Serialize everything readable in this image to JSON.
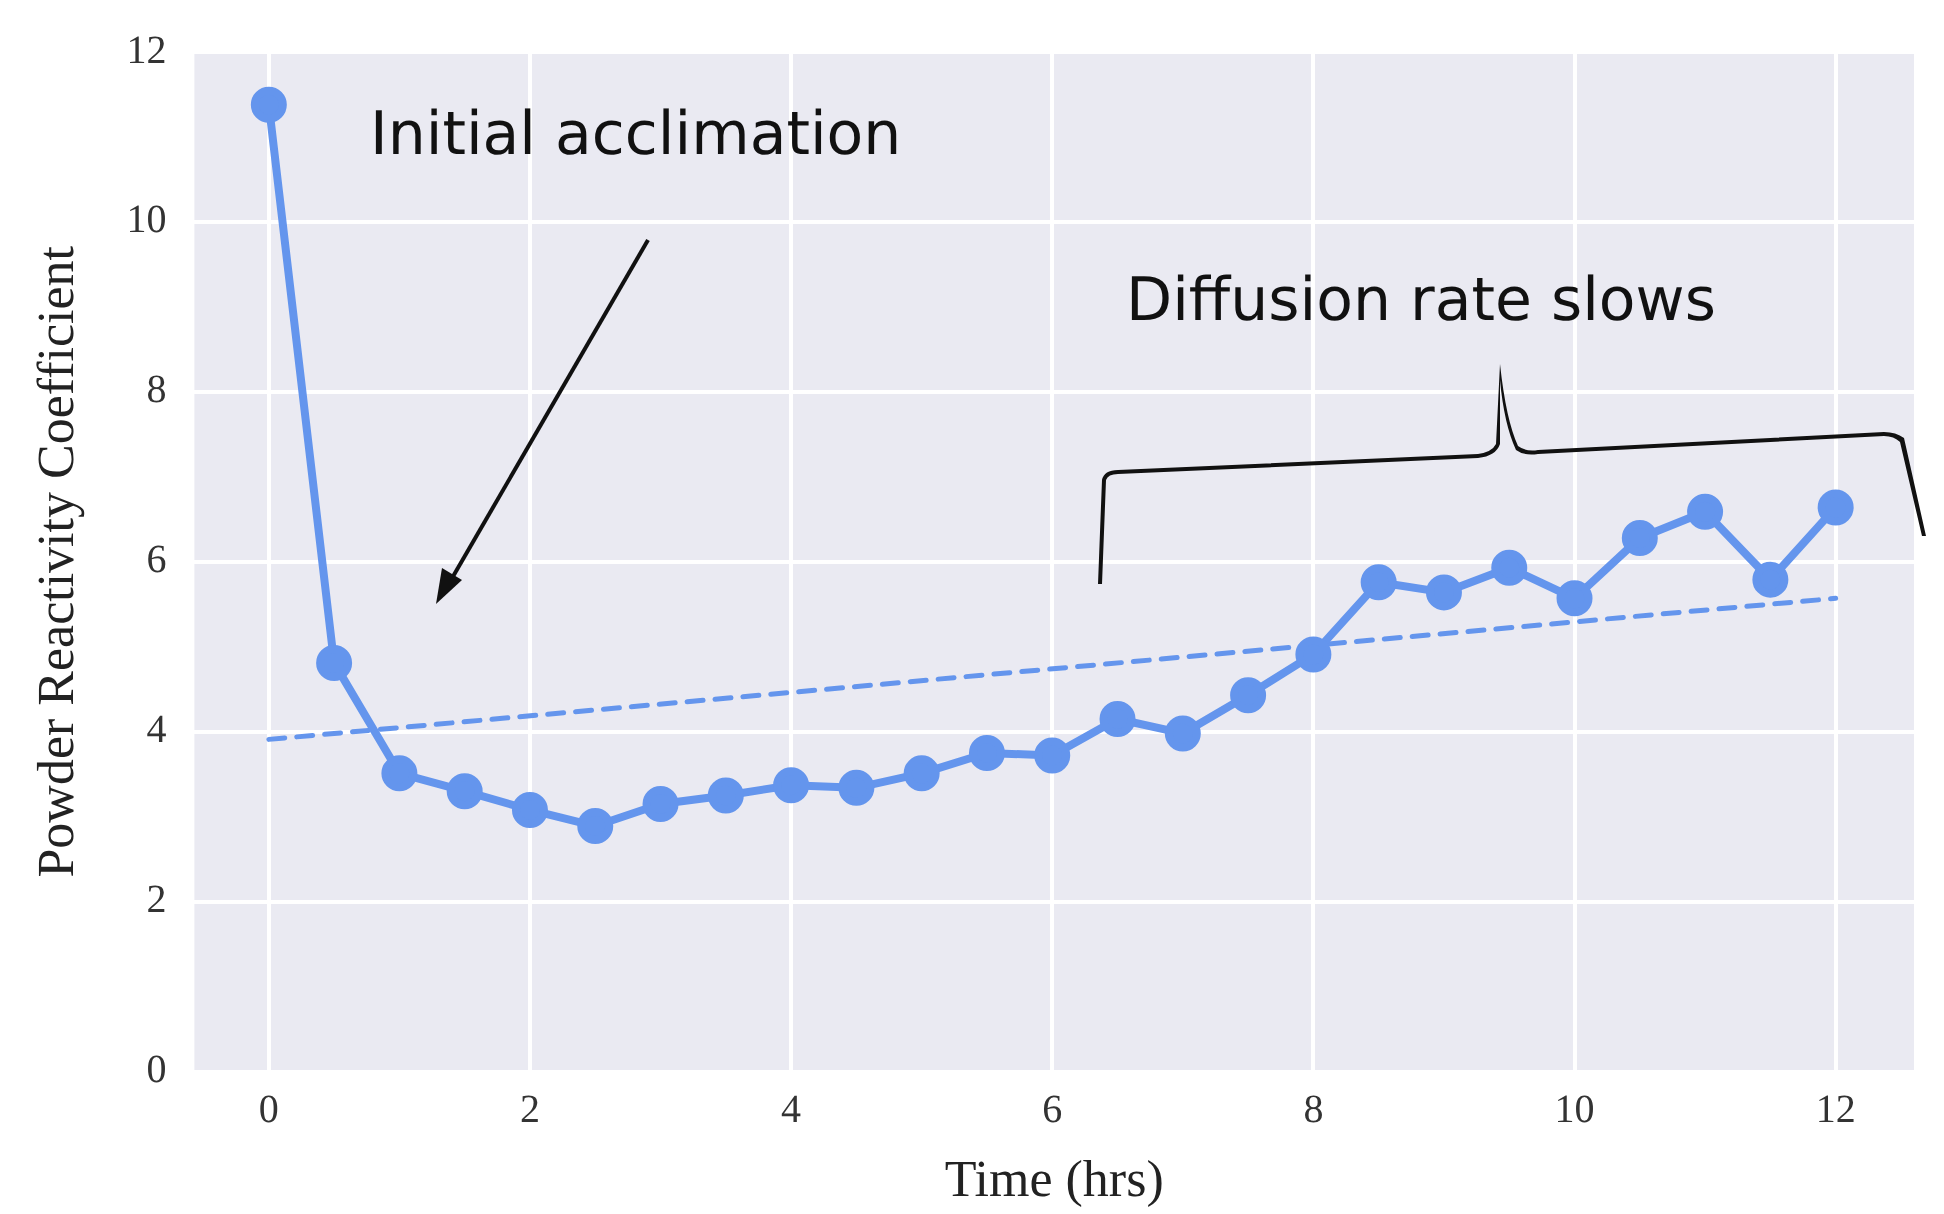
{
  "chart_data": {
    "type": "line",
    "xlabel": "Time (hrs)",
    "ylabel": "Powder Reactivity Coefficient",
    "x": [
      0,
      0.5,
      1,
      1.5,
      2,
      2.5,
      3,
      3.5,
      4,
      4.5,
      5,
      5.5,
      6,
      6.5,
      7,
      7.5,
      8,
      8.5,
      9,
      9.5,
      10,
      10.5,
      11,
      11.5,
      12
    ],
    "series": [
      {
        "color": "#6495ed",
        "values": [
          11.38,
          4.81,
          3.51,
          3.3,
          3.08,
          2.89,
          3.15,
          3.25,
          3.37,
          3.34,
          3.51,
          3.75,
          3.72,
          4.15,
          3.98,
          4.43,
          4.91,
          5.76,
          5.64,
          5.93,
          5.57,
          6.28,
          6.59,
          5.79,
          6.64
        ]
      },
      {
        "type": "line",
        "color": "#6495ed",
        "x": [
          0,
          12
        ],
        "values": [
          3.91,
          5.57
        ],
        "line_style": "dashed",
        "marker": "none"
      }
    ],
    "xlim": [
      -0.57,
      12.6
    ],
    "ylim": [
      0,
      12
    ],
    "xticks": [
      0,
      2,
      4,
      6,
      8,
      10,
      12
    ],
    "yticks": [
      0,
      2,
      4,
      6,
      8,
      10,
      12
    ],
    "grid": true,
    "legend": false,
    "marker": "circle",
    "line_style": "solid",
    "annotations": [
      "Initial acclimation",
      "Diffusion rate slows"
    ]
  }
}
